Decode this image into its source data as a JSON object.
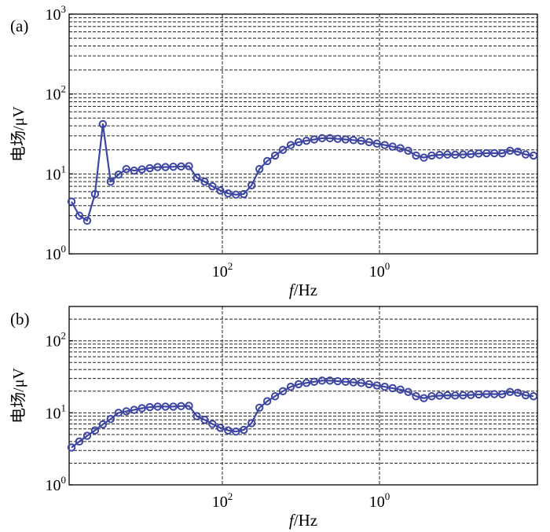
{
  "colors": {
    "series": "#3d46a3",
    "grid": "#222222",
    "axis": "#000000"
  },
  "chart_data": [
    {
      "type": "line",
      "panel_label": "(a)",
      "ylabel": "电场/μV",
      "xlabel_italic": "f",
      "xlabel_rest": "/Hz",
      "xlabel": "f/Hz",
      "y_scale": "log",
      "ylim": [
        1,
        1000
      ],
      "y_ticks": [
        {
          "base": "10",
          "exp": "0"
        },
        {
          "base": "10",
          "exp": "1"
        },
        {
          "base": "10",
          "exp": "2"
        },
        {
          "base": "10",
          "exp": "3"
        }
      ],
      "x_ticks": [
        {
          "base": "10",
          "exp": "2"
        },
        {
          "base": "10",
          "exp": "0"
        }
      ],
      "grid": true,
      "marker": "open-circle",
      "series": [
        {
          "values": [
            4.5,
            3.0,
            2.6,
            5.6,
            42,
            8.0,
            9.8,
            11.5,
            11,
            11.4,
            11.8,
            12.2,
            12.2,
            12.3,
            12.4,
            12.5,
            9.0,
            8.0,
            7.0,
            6.2,
            5.7,
            5.5,
            5.6,
            7.2,
            11.5,
            14.5,
            17,
            20,
            23,
            25,
            26,
            27,
            28,
            28,
            27.5,
            27,
            26.5,
            26,
            25,
            24,
            23,
            22,
            21,
            19.5,
            17,
            16,
            17,
            17.3,
            17.5,
            17.4,
            17.5,
            17.7,
            18,
            18.2,
            18.2,
            18.1,
            19.5,
            19,
            17.5,
            17
          ]
        }
      ]
    },
    {
      "type": "line",
      "panel_label": "(b)",
      "ylabel": "电场/μV",
      "xlabel_italic": "f",
      "xlabel_rest": "/Hz",
      "xlabel": "f/Hz",
      "y_scale": "log",
      "ylim": [
        1,
        300
      ],
      "y_ticks": [
        {
          "base": "10",
          "exp": "0"
        },
        {
          "base": "10",
          "exp": "1"
        },
        {
          "base": "10",
          "exp": "2"
        }
      ],
      "x_ticks": [
        {
          "base": "10",
          "exp": "2"
        },
        {
          "base": "10",
          "exp": "0"
        }
      ],
      "grid": true,
      "marker": "open-circle",
      "series": [
        {
          "values": [
            3.3,
            4.0,
            4.8,
            5.7,
            6.9,
            8.2,
            10,
            10.5,
            11,
            11.6,
            12.0,
            12.2,
            12.2,
            12.2,
            12.4,
            12.5,
            9.0,
            8.0,
            7.0,
            6.2,
            5.7,
            5.5,
            5.8,
            7.2,
            11.8,
            14.5,
            17,
            20,
            23,
            25,
            26,
            27,
            28,
            28,
            27.5,
            27,
            26.5,
            26,
            25,
            24,
            23,
            22,
            21,
            19.5,
            17,
            16,
            17,
            17.3,
            17.5,
            17.4,
            17.5,
            17.7,
            18,
            18.2,
            18.2,
            18.1,
            19.5,
            19,
            17.5,
            17
          ]
        }
      ]
    }
  ]
}
